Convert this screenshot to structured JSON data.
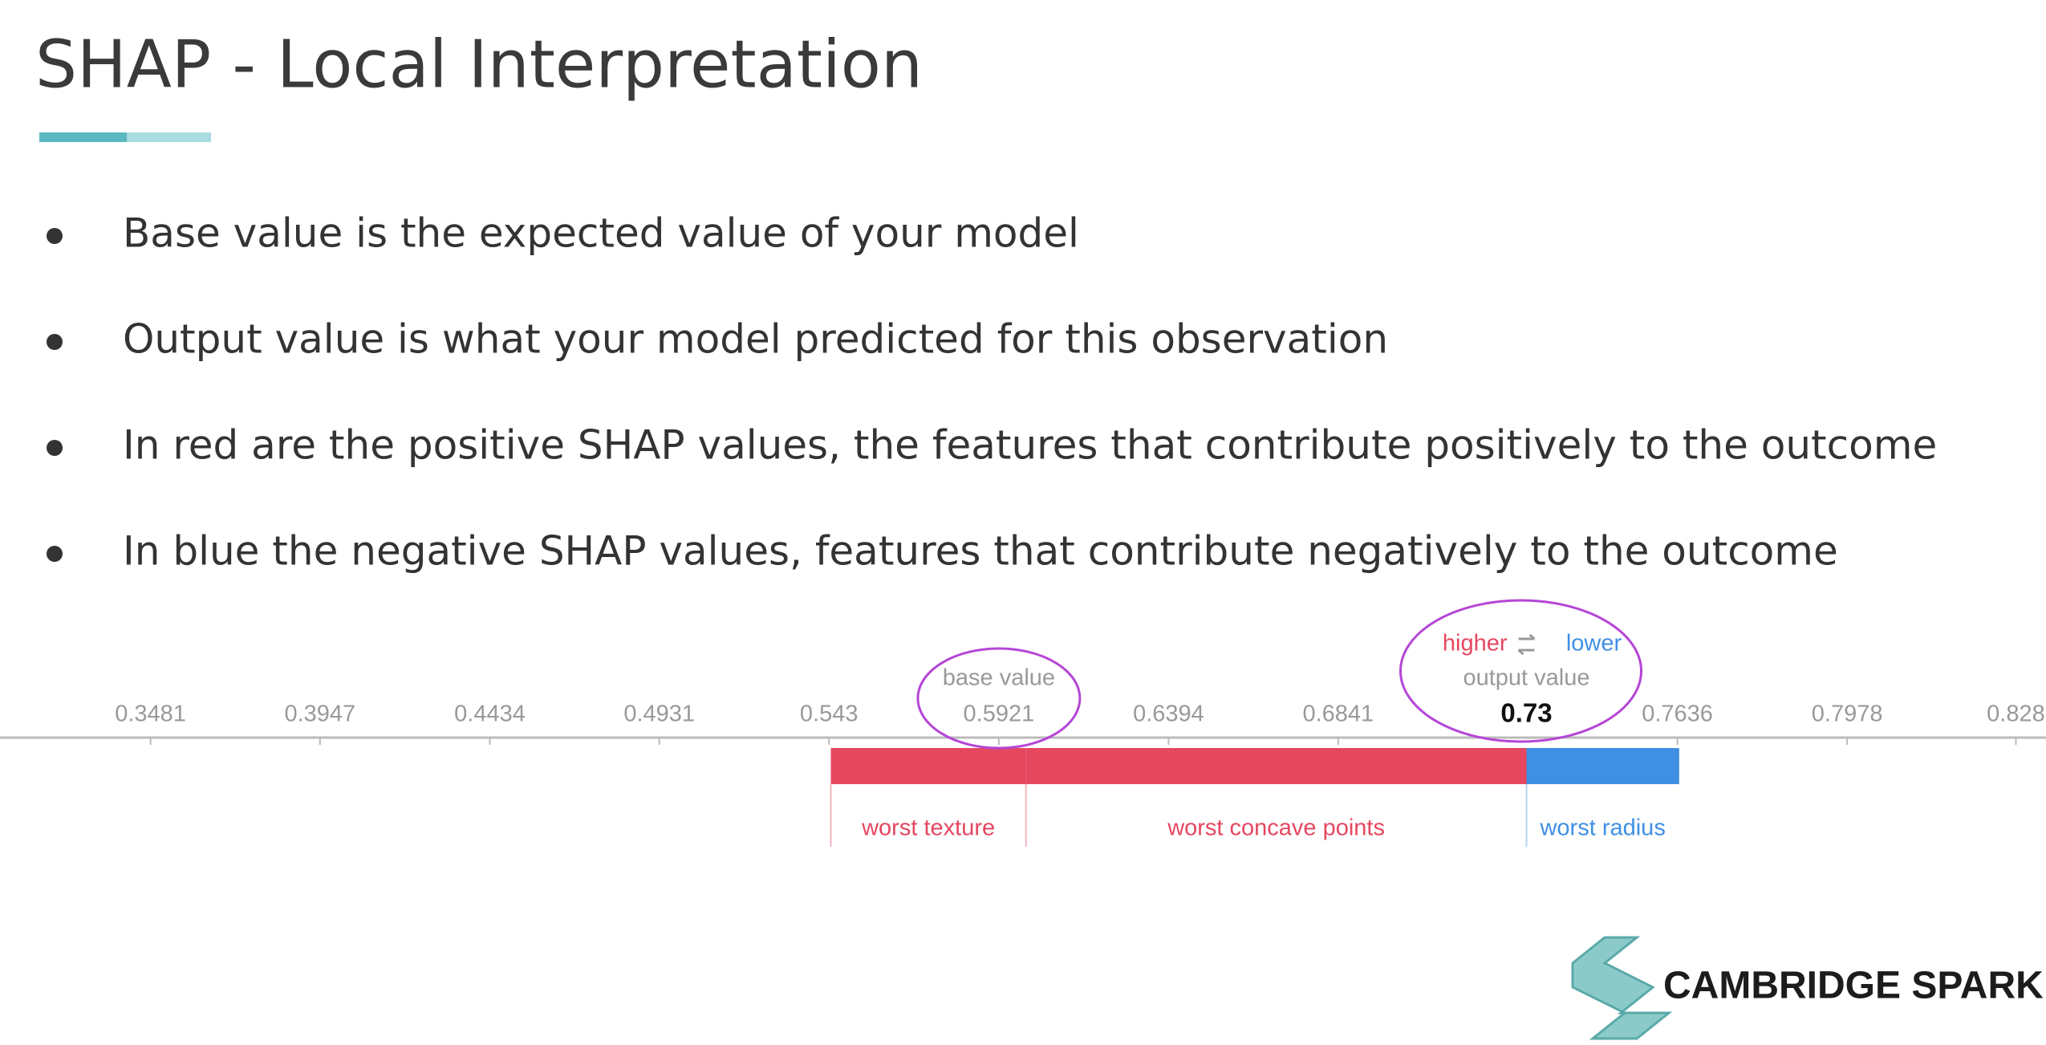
{
  "header": {
    "title": "SHAP - Local Interpretation"
  },
  "bullets": [
    "Base value is the expected value of your model",
    "Output value is what your model predicted for this observation",
    "In red are the positive SHAP values, the features that contribute positively to the outcome",
    "In blue the negative SHAP values, features that contribute negatively to the outcome"
  ],
  "chart_data": {
    "type": "force",
    "link": "logit",
    "xlim": [
      0.309,
      0.833
    ],
    "xticks": [
      0.3481,
      0.3947,
      0.4434,
      0.4931,
      0.543,
      0.5921,
      0.6394,
      0.6841,
      0.7636,
      0.7978,
      0.828
    ],
    "base_label": "base value",
    "base_value": 0.5921,
    "higher_label": "higher",
    "lower_label": "lower",
    "output_label": "output value",
    "output_value": 0.73,
    "categories": [
      "worst texture",
      "worst concave points",
      "worst radius"
    ],
    "values": [
      0.23,
      0.59,
      -0.18
    ],
    "positive_color": "#e5475f",
    "negative_color": "#3f8fe3",
    "highlight_color": "#b546d6"
  },
  "logo": {
    "text": "CAMBRIDGE SPARK"
  }
}
